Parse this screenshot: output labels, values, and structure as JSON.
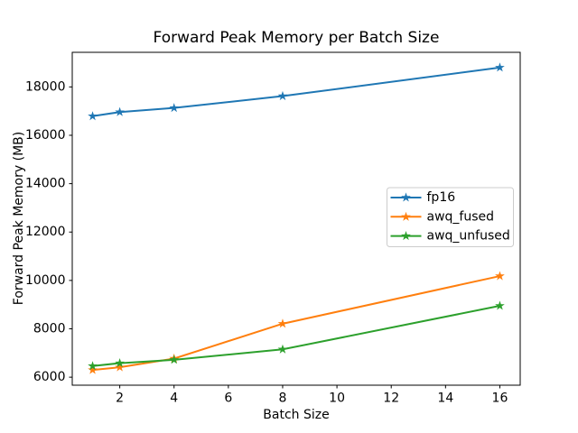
{
  "chart_data": {
    "type": "line",
    "title": "Forward Peak Memory per Batch Size",
    "xlabel": "Batch Size",
    "ylabel": "Forward Peak Memory (MB)",
    "x": [
      1,
      2,
      4,
      8,
      16
    ],
    "series": [
      {
        "name": "fp16",
        "color": "#1f77b4",
        "marker": "star",
        "values": [
          16790,
          16960,
          17130,
          17620,
          18800
        ]
      },
      {
        "name": "awq_fused",
        "color": "#ff7f0e",
        "marker": "star",
        "values": [
          6300,
          6410,
          6770,
          8210,
          10180
        ]
      },
      {
        "name": "awq_unfused",
        "color": "#2ca02c",
        "marker": "star",
        "values": [
          6460,
          6580,
          6720,
          7150,
          8950
        ]
      }
    ],
    "xticks": [
      2,
      4,
      6,
      8,
      10,
      12,
      14,
      16
    ],
    "yticks": [
      6000,
      8000,
      10000,
      12000,
      14000,
      16000,
      18000
    ],
    "xlim": [
      0.25,
      16.75
    ],
    "ylim": [
      5669,
      19430
    ],
    "grid": false,
    "legend": {
      "position": "center-right",
      "entries": [
        "fp16",
        "awq_fused",
        "awq_unfused"
      ]
    },
    "colors": {
      "spine": "#000000",
      "background": "#ffffff",
      "legend_border": "#cccccc"
    }
  }
}
